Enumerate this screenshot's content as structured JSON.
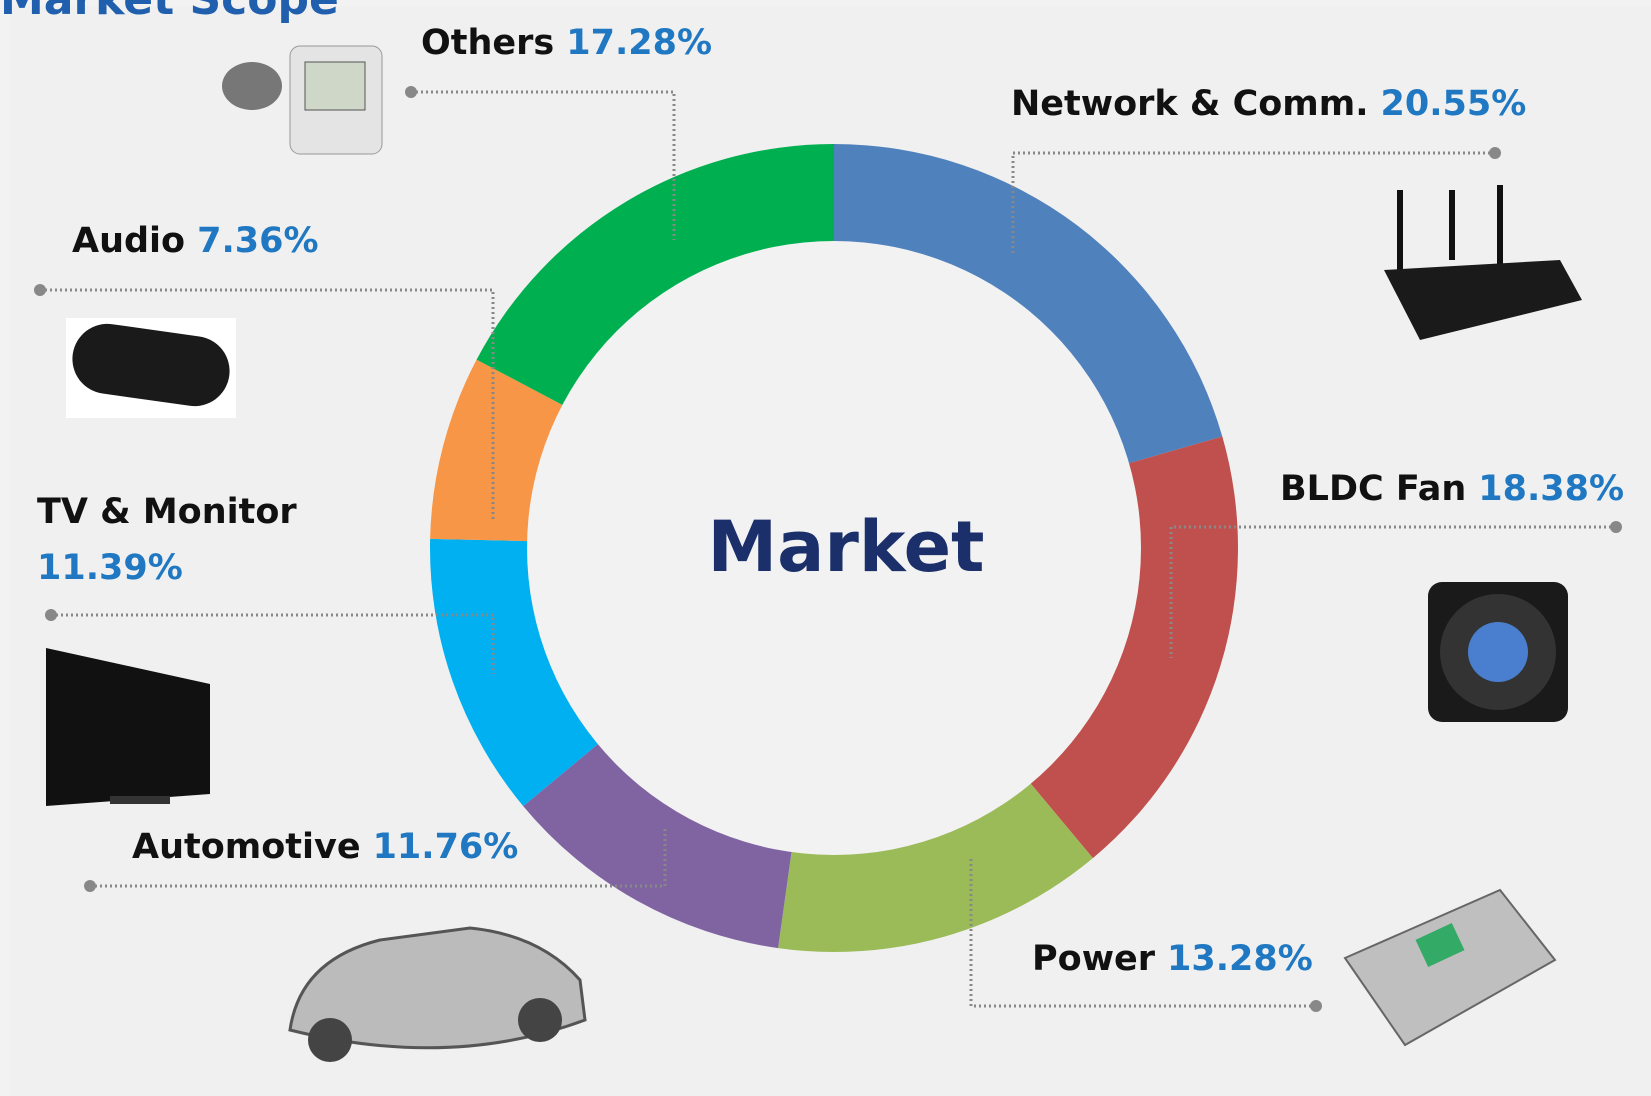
{
  "chart_data": {
    "type": "pie",
    "title": "Market Scope",
    "center_label": "Market",
    "categories": [
      "Network & Comm.",
      "BLDC Fan",
      "Power",
      "Automotive",
      "TV & Monitor",
      "Audio",
      "Others"
    ],
    "values": [
      20.55,
      18.38,
      13.28,
      11.76,
      11.39,
      7.36,
      17.28
    ],
    "value_labels": [
      "20.55%",
      "18.38%",
      "13.28%",
      "11.76%",
      "11.39%",
      "7.36%",
      "17.28%"
    ],
    "colors": [
      "#4f81bd",
      "#c0504d",
      "#9bbb59",
      "#8064a2",
      "#00b0f0",
      "#f79646",
      "#00b050"
    ]
  }
}
